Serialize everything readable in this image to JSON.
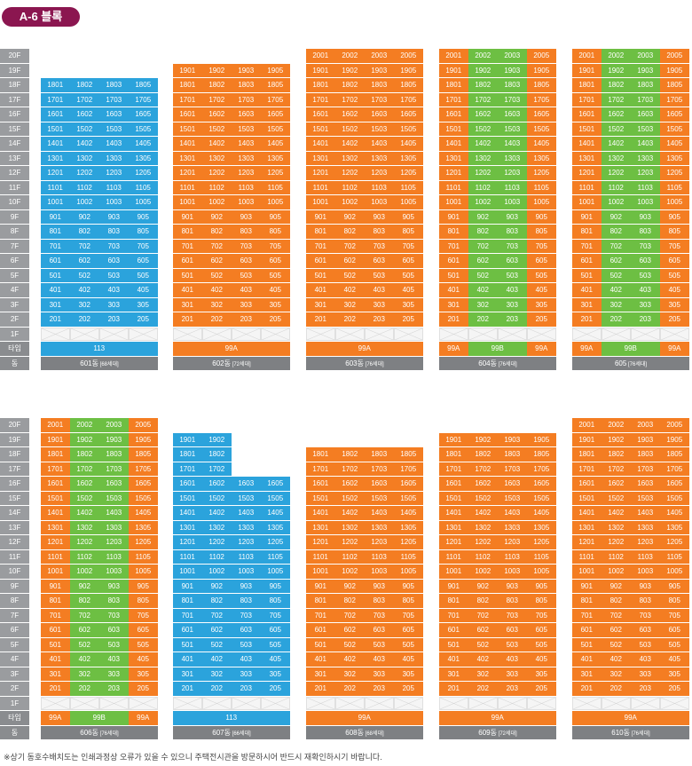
{
  "block_title": "A-6 블록",
  "note": "※상기 동호수배치도는 인쇄과정상 오류가 있을 수 있으니 주택전시관을 방문하시어 반드시 재확인하시기 바랍니다.",
  "labels": {
    "type": "타입",
    "dong": "동",
    "first_floor": "1F"
  },
  "floors": [
    "20F",
    "19F",
    "18F",
    "17F",
    "16F",
    "15F",
    "14F",
    "13F",
    "12F",
    "11F",
    "10F",
    "9F",
    "8F",
    "7F",
    "6F",
    "5F",
    "4F",
    "3F",
    "2F",
    "1F"
  ],
  "unit_suffixes": [
    "01",
    "02",
    "03",
    "05"
  ],
  "colors": {
    "113": "#2ba3dc",
    "99A": "#f47d22",
    "99B": "#6dbf43"
  },
  "rows": [
    {
      "buildings": [
        {
          "dong": "601동",
          "households": "[68세대]",
          "top_floor": 18,
          "types": [
            {
              "label": "113",
              "span": 4
            }
          ]
        },
        {
          "dong": "602동",
          "households": "[72세대]",
          "top_floor": 19,
          "types": [
            {
              "label": "99A",
              "span": 4
            }
          ]
        },
        {
          "dong": "603동",
          "households": "[76세대]",
          "top_floor": 20,
          "types": [
            {
              "label": "99A",
              "span": 4
            }
          ]
        },
        {
          "dong": "604동",
          "households": "[76세대]",
          "top_floor": 20,
          "types": [
            {
              "label": "99A",
              "span": 1
            },
            {
              "label": "99B",
              "span": 2
            },
            {
              "label": "99A",
              "span": 1
            }
          ]
        },
        {
          "dong": "605",
          "households": "[76세대]",
          "top_floor": 20,
          "types": [
            {
              "label": "99A",
              "span": 1
            },
            {
              "label": "99B",
              "span": 2
            },
            {
              "label": "99A",
              "span": 1
            }
          ]
        }
      ]
    },
    {
      "buildings": [
        {
          "dong": "606동",
          "households": "[76세대]",
          "top_floor": 20,
          "types": [
            {
              "label": "99A",
              "span": 1
            },
            {
              "label": "99B",
              "span": 2
            },
            {
              "label": "99A",
              "span": 1
            }
          ]
        },
        {
          "dong": "607동",
          "households": "[66세대]",
          "top_floor": 19,
          "right_top_floor": 16,
          "types": [
            {
              "label": "113",
              "span": 4
            }
          ]
        },
        {
          "dong": "608동",
          "households": "[68세대]",
          "top_floor": 18,
          "types": [
            {
              "label": "99A",
              "span": 4
            }
          ]
        },
        {
          "dong": "609동",
          "households": "[72세대]",
          "top_floor": 19,
          "types": [
            {
              "label": "99A",
              "span": 4
            }
          ]
        },
        {
          "dong": "610동",
          "households": "[76세대]",
          "top_floor": 20,
          "types": [
            {
              "label": "99A",
              "span": 4
            }
          ]
        }
      ]
    }
  ]
}
